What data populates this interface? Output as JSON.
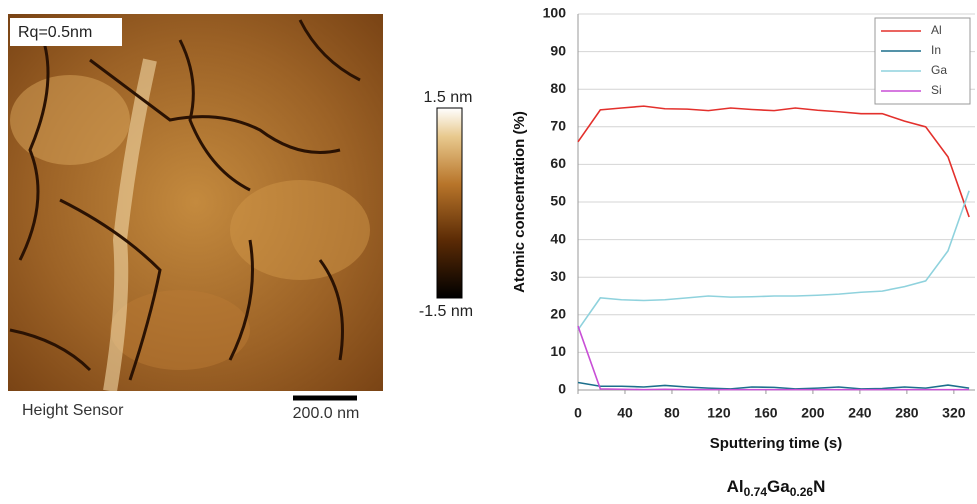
{
  "afm": {
    "rq": "Rq=0.5nm",
    "sensor": "Height Sensor",
    "scale_bar": "200.0 nm",
    "colorbar_max": "1.5 nm",
    "colorbar_min": "-1.5 nm"
  },
  "chart_data": {
    "type": "line",
    "x_label": "Sputtering time (s)",
    "y_label": "Atomic concentration (%)",
    "x": [
      0,
      19,
      37,
      56,
      74,
      93,
      111,
      130,
      148,
      167,
      185,
      204,
      222,
      241,
      259,
      278,
      296,
      315,
      333
    ],
    "series": [
      {
        "name": "Al",
        "color": "#e3302c",
        "values": [
          66,
          74.5,
          75,
          75.5,
          74.8,
          74.7,
          74.3,
          75,
          74.6,
          74.3,
          75,
          74.4,
          74,
          73.5,
          73.5,
          71.5,
          70,
          62,
          46
        ]
      },
      {
        "name": "In",
        "color": "#1b6f8c",
        "values": [
          2,
          1,
          1,
          0.8,
          1.2,
          0.8,
          0.5,
          0.3,
          0.8,
          0.7,
          0.3,
          0.5,
          0.8,
          0.3,
          0.4,
          0.8,
          0.5,
          1.3,
          0.5
        ]
      },
      {
        "name": "Ga",
        "color": "#8fd2dd",
        "values": [
          16,
          24.5,
          24,
          23.8,
          24,
          24.5,
          25,
          24.7,
          24.8,
          25,
          25,
          25.2,
          25.5,
          26,
          26.3,
          27.5,
          29,
          37,
          53
        ]
      },
      {
        "name": "Si",
        "color": "#c84fd6",
        "values": [
          17,
          0.3,
          0.2,
          0.1,
          0.2,
          0.1,
          0.1,
          0.1,
          0.1,
          0.1,
          0.1,
          0.1,
          0.1,
          0.1,
          0.1,
          0.1,
          0.1,
          0.1,
          0.1
        ]
      }
    ],
    "xlim": [
      0,
      338
    ],
    "xticks": [
      0,
      40,
      80,
      120,
      160,
      200,
      240,
      280,
      320
    ],
    "ylim": [
      0,
      100
    ],
    "yticks": [
      0,
      10,
      20,
      30,
      40,
      50,
      60,
      70,
      80,
      90,
      100
    ],
    "grid": true,
    "legend": "top-right"
  },
  "caption": {
    "parts": [
      "Al",
      "0.74",
      "Ga",
      "0.26",
      "N"
    ]
  }
}
